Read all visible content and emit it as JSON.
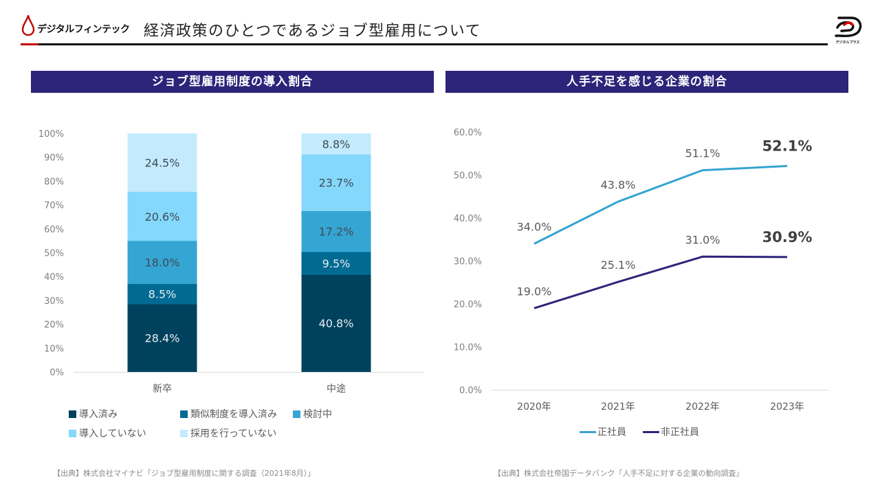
{
  "header": {
    "brand_left": "デジタルフィンテック",
    "title": "経済政策のひとつであるジョブ型雇用について",
    "brand_right": "デジタルプラス",
    "accent_color": "#c00000"
  },
  "sections": {
    "left_title": "ジョブ型雇用制度の導入割合",
    "right_title": "人手不足を感じる企業の割合",
    "header_color": "#2c2479"
  },
  "sources": {
    "left": "【出典】株式会社マイナビ「ジョブ型雇用制度に関する調査（2021年8月）」",
    "right": "【出典】株式会社帝国データバンク「人手不足に対する企業の動向調査」"
  },
  "chart_data": [
    {
      "type": "bar",
      "stacked": true,
      "percent_stacked": true,
      "title": "ジョブ型雇用制度の導入割合",
      "categories": [
        "新卒",
        "中途"
      ],
      "series": [
        {
          "name": "導入済み",
          "values": [
            28.4,
            40.8
          ],
          "color": "#00425e",
          "label_color": "#e8eef2"
        },
        {
          "name": "類似制度を導入済み",
          "values": [
            8.5,
            9.5
          ],
          "color": "#006a93",
          "label_color": "#e8eef2"
        },
        {
          "name": "検討中",
          "values": [
            18.0,
            17.2
          ],
          "color": "#35a5d3",
          "label_color": "#3f4a55"
        },
        {
          "name": "導入していない",
          "values": [
            20.6,
            23.7
          ],
          "color": "#84d8fb",
          "label_color": "#3f4a55"
        },
        {
          "name": "採用を行っていない",
          "values": [
            24.5,
            8.8
          ],
          "color": "#c3ebfd",
          "label_color": "#3f4a55"
        }
      ],
      "data_labels": [
        [
          "28.4%",
          "8.5%",
          "18.0%",
          "20.6%",
          "24.5%"
        ],
        [
          "40.8%",
          "9.5%",
          "17.2%",
          "23.7%",
          "8.8%"
        ]
      ],
      "yticks": [
        "0%",
        "10%",
        "20%",
        "30%",
        "40%",
        "50%",
        "60%",
        "70%",
        "80%",
        "90%",
        "100%"
      ],
      "ylim": [
        0,
        100
      ],
      "xlabel": "",
      "ylabel": "",
      "grid": false,
      "legend_position": "bottom"
    },
    {
      "type": "line",
      "title": "人手不足を感じる企業の割合",
      "x": [
        "2020年",
        "2021年",
        "2022年",
        "2023年"
      ],
      "series": [
        {
          "name": "正社員",
          "values": [
            34.0,
            43.8,
            51.1,
            52.1
          ],
          "color": "#34a4d1",
          "labels": [
            "34.0%",
            "43.8%",
            "51.1%",
            "52.1%"
          ]
        },
        {
          "name": "非正社員",
          "values": [
            19.0,
            25.1,
            31.0,
            30.9
          ],
          "color": "#2c2479",
          "labels": [
            "19.0%",
            "25.1%",
            "31.0%",
            "30.9%"
          ]
        }
      ],
      "emphasized_label_index": 3,
      "yticks": [
        "0.0%",
        "10.0%",
        "20.0%",
        "30.0%",
        "40.0%",
        "50.0%",
        "60.0%"
      ],
      "ylim": [
        0,
        60
      ],
      "xlabel": "",
      "ylabel": "",
      "grid": false,
      "legend_position": "bottom"
    }
  ]
}
